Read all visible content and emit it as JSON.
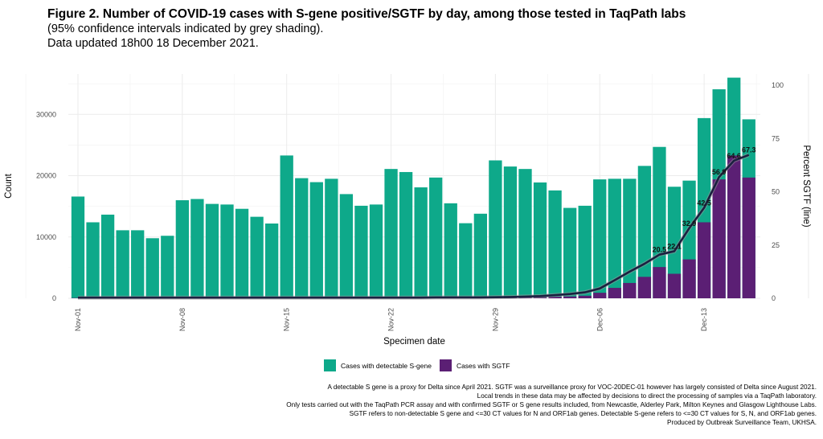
{
  "header": {
    "title": "Figure 2. Number of COVID-19 cases with S-gene positive/SGTF by day, among those tested in TaqPath labs",
    "subtitle1": "(95% confidence intervals indicated by grey shading).",
    "subtitle2": "Data updated 18h00 18 December 2021."
  },
  "chart_data": {
    "type": "bar",
    "stacked": true,
    "secondary_type": "line",
    "title": "Figure 2. Number of COVID-19 cases with S-gene positive/SGTF by day, among those tested in TaqPath labs",
    "xlabel": "Specimen date",
    "ylabel": "Count",
    "y2label": "Percent SGTF (line)",
    "ylim": [
      0,
      36600
    ],
    "y2lim": [
      0,
      105.3
    ],
    "yticks": [
      "0",
      "10000",
      "20000",
      "30000"
    ],
    "ytick_values": [
      0,
      10000,
      20000,
      30000
    ],
    "y2ticks": [
      "0",
      "25",
      "50",
      "75",
      "100"
    ],
    "y2tick_values": [
      0,
      25,
      50,
      75,
      100
    ],
    "xtick_labels": [
      "Nov-01",
      "Nov-08",
      "Nov-15",
      "Nov-22",
      "Nov-29",
      "Dec-06",
      "Dec-13"
    ],
    "xtick_index": [
      0,
      7,
      14,
      21,
      28,
      35,
      42
    ],
    "categories": [
      "Nov-01",
      "Nov-02",
      "Nov-03",
      "Nov-04",
      "Nov-05",
      "Nov-06",
      "Nov-07",
      "Nov-08",
      "Nov-09",
      "Nov-10",
      "Nov-11",
      "Nov-12",
      "Nov-13",
      "Nov-14",
      "Nov-15",
      "Nov-16",
      "Nov-17",
      "Nov-18",
      "Nov-19",
      "Nov-20",
      "Nov-21",
      "Nov-22",
      "Nov-23",
      "Nov-24",
      "Nov-25",
      "Nov-26",
      "Nov-27",
      "Nov-28",
      "Nov-29",
      "Nov-30",
      "Dec-01",
      "Dec-02",
      "Dec-03",
      "Dec-04",
      "Dec-05",
      "Dec-06",
      "Dec-07",
      "Dec-08",
      "Dec-09",
      "Dec-10",
      "Dec-11",
      "Dec-12",
      "Dec-13",
      "Dec-14",
      "Dec-15",
      "Dec-16"
    ],
    "total_cases": [
      16600,
      12400,
      13650,
      11100,
      11100,
      9800,
      10200,
      16000,
      16200,
      15400,
      15300,
      14600,
      13300,
      12200,
      23300,
      19600,
      18950,
      19500,
      17000,
      15100,
      15300,
      21100,
      20600,
      18100,
      19700,
      15500,
      12250,
      13800,
      22500,
      21500,
      21100,
      18900,
      17600,
      14750,
      15100,
      19400,
      19500,
      19500,
      21600,
      24700,
      18200,
      19200,
      29400,
      34100,
      36000,
      29200
    ],
    "series": [
      {
        "name": "Cases with detectable S-gene",
        "color": "#0ea98a"
      },
      {
        "name": "Cases with SGTF",
        "color": "#5b1f74",
        "values": [
          50,
          40,
          40,
          35,
          35,
          30,
          30,
          50,
          50,
          45,
          45,
          45,
          40,
          40,
          70,
          60,
          60,
          60,
          55,
          50,
          50,
          70,
          70,
          60,
          70,
          55,
          45,
          55,
          110,
          130,
          170,
          190,
          260,
          300,
          420,
          900,
          1700,
          2500,
          3500,
          5100,
          4000,
          6350,
          12400,
          19400,
          23300,
          19700
        ]
      },
      {
        "name": "Percent SGTF",
        "color": "#1b2040",
        "axis": "right",
        "values": [
          0.3,
          0.3,
          0.3,
          0.3,
          0.3,
          0.3,
          0.3,
          0.3,
          0.3,
          0.3,
          0.3,
          0.3,
          0.3,
          0.3,
          0.3,
          0.3,
          0.3,
          0.3,
          0.3,
          0.3,
          0.3,
          0.3,
          0.3,
          0.3,
          0.4,
          0.4,
          0.4,
          0.4,
          0.5,
          0.6,
          0.8,
          1.0,
          1.5,
          2.0,
          2.8,
          4.6,
          8.5,
          12.5,
          16.2,
          20.5,
          22.1,
          32.9,
          42.5,
          56.9,
          64.6,
          67.3
        ]
      }
    ],
    "data_labels": [
      {
        "index": 39,
        "text": "20.5"
      },
      {
        "index": 40,
        "text": "22.1"
      },
      {
        "index": 41,
        "text": "32.9"
      },
      {
        "index": 42,
        "text": "42.5"
      },
      {
        "index": 43,
        "text": "56.9"
      },
      {
        "index": 44,
        "text": "64.6"
      },
      {
        "index": 45,
        "text": "67.3"
      }
    ],
    "grid": true,
    "legend_position": "bottom"
  },
  "legend": {
    "items": [
      {
        "label": "Cases with detectable S-gene",
        "color": "#0ea98a"
      },
      {
        "label": "Cases with SGTF",
        "color": "#5b1f74"
      }
    ]
  },
  "notes": [
    "A detectable S gene is a proxy for Delta since April 2021. SGTF was a surveillance proxy for VOC-20DEC-01 however has largely consisted of Delta since August 2021.",
    "Local trends in these data may be affected by decisions to direct the processing of samples via a TaqPath laboratory.",
    "Only tests carried out with the TaqPath PCR assay and with confirmed SGTF or S gene results included, from Newcastle, Alderley Park, Milton Keynes and Glasgow Lighthouse Labs.",
    "SGTF refers to non-detectable S gene and <=30 CT values for N and ORF1ab genes. Detectable S-gene refers to <=30 CT values for S, N, and ORF1ab genes.",
    "Produced by Outbreak Surveillance Team, UKHSA."
  ]
}
